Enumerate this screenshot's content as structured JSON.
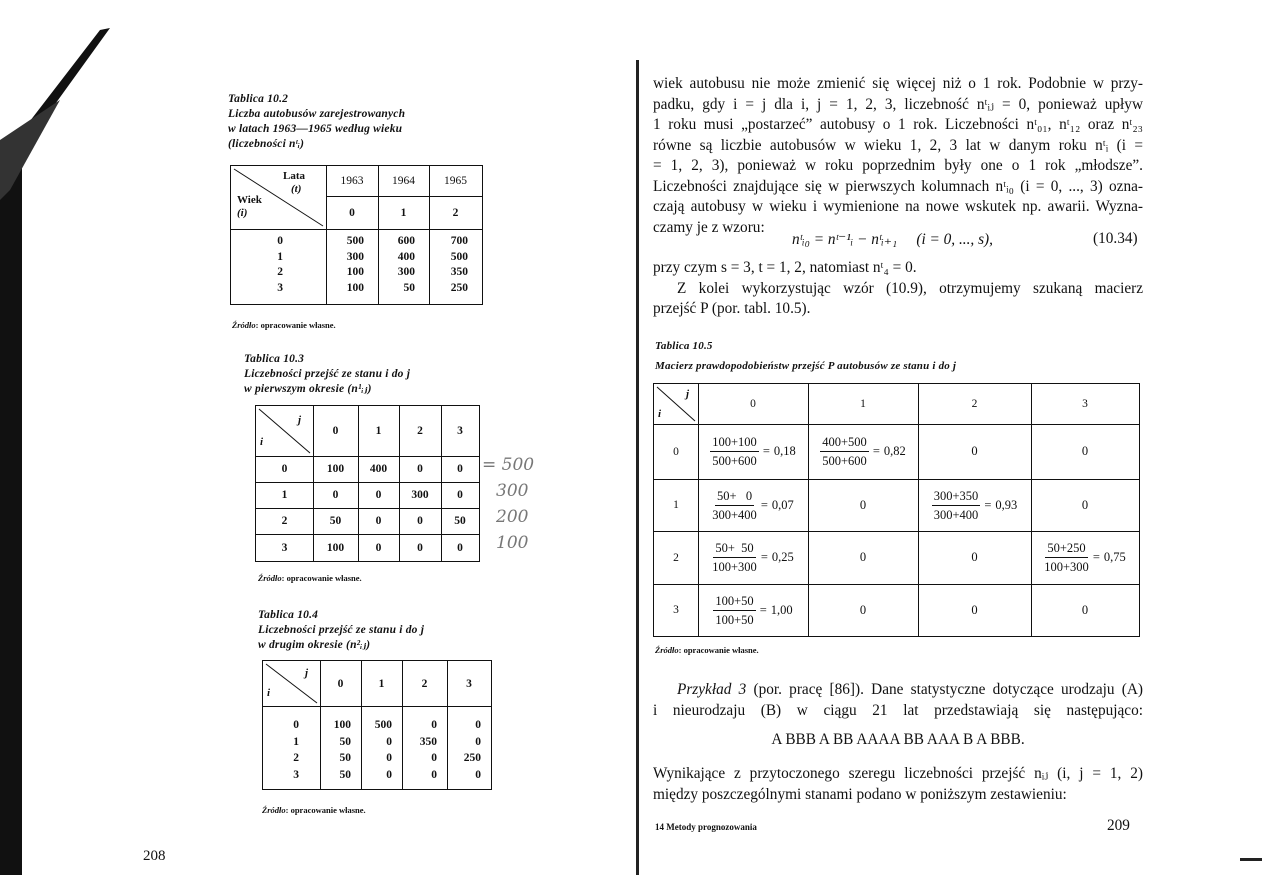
{
  "left_page": {
    "page_number": "208",
    "table_10_2": {
      "label": "Tablica 10.2",
      "caption_lines": [
        "Liczba autobusów zarejestrowanych",
        "w latach 1963—1965 według wieku",
        "(liczebności nᵗᵢ)"
      ],
      "corner_top": "Lata",
      "corner_top_sub": "(t)",
      "corner_bottom": "Wiek",
      "corner_bottom_sub": "(i)",
      "years": [
        "1963",
        "1964",
        "1965"
      ],
      "t_values": [
        "0",
        "1",
        "2"
      ],
      "row_labels": [
        "0",
        "1",
        "2",
        "3"
      ],
      "columns": [
        [
          "500",
          "300",
          "100",
          "100"
        ],
        [
          "600",
          "400",
          "300",
          "50"
        ],
        [
          "700",
          "500",
          "350",
          "250"
        ]
      ],
      "source_label": "Źródło",
      "source_text": ": opracowanie własne."
    },
    "table_10_3": {
      "label": "Tablica 10.3",
      "caption_lines": [
        "Liczebności przejść ze stanu i do j",
        "w pierwszym okresie (n¹ᵢⱼ)"
      ],
      "corner_top": "j",
      "corner_bottom": "i",
      "col_headers": [
        "0",
        "1",
        "2",
        "3"
      ],
      "row_labels": [
        "0",
        "1",
        "2",
        "3"
      ],
      "rows": [
        [
          "100",
          "400",
          "0",
          "0"
        ],
        [
          "0",
          "0",
          "300",
          "0"
        ],
        [
          "50",
          "0",
          "0",
          "50"
        ],
        [
          "100",
          "0",
          "0",
          "0"
        ]
      ],
      "source_label": "Źródło",
      "source_text": ": opracowanie własne.",
      "handwritten_notes": [
        "= 500",
        "300",
        "200",
        "100"
      ]
    },
    "table_10_4": {
      "label": "Tablica 10.4",
      "caption_lines": [
        "Liczebności przejść ze stanu i do j",
        "w drugim okresie (n²ᵢⱼ)"
      ],
      "corner_top": "j",
      "corner_bottom": "i",
      "col_headers": [
        "0",
        "1",
        "2",
        "3"
      ],
      "row_labels": [
        "0",
        "1",
        "2",
        "3"
      ],
      "columns": [
        [
          "100",
          "50",
          "50",
          "50"
        ],
        [
          "500",
          "0",
          "0",
          "0"
        ],
        [
          "0",
          "350",
          "0",
          "0"
        ],
        [
          "0",
          "0",
          "250",
          "0"
        ]
      ],
      "source_label": "Źródło",
      "source_text": ": opracowanie własne."
    }
  },
  "right_page": {
    "page_number": "209",
    "footer_note": "14  Metody prognozowania",
    "paragraph_lines": [
      "wiek autobusu nie może zmienić się więcej niż o 1 rok. Podobnie w przy-",
      "padku, gdy i = j dla i, j = 1, 2, 3, liczebność nᵗᵢⱼ = 0, ponieważ upływ",
      "1 roku musi „postarzeć” autobusy o 1 rok. Liczebności nᵗ₀₁, nᵗ₁₂ oraz nᵗ₂₃",
      "równe są liczbie autobusów w wieku 1, 2, 3 lat w danym roku nᵗᵢ (i =",
      "= 1, 2, 3), ponieważ w roku poprzednim były one o 1 rok „młodsze”.",
      "Liczebności znajdujące się w pierwszych kolumnach nᵗᵢ₀ (i = 0, ..., 3) ozna-",
      "czają autobusy w wieku i wymienione na nowe wskutek np. awarii. Wyzna-",
      "czamy je z wzoru:"
    ],
    "formula": "nᵗᵢ₀ = nᵗ⁻¹ᵢ − nᵗᵢ₊₁     (i = 0, ..., s),",
    "formula_number": "(10.34)",
    "after_formula_lines": [
      "przy czym s = 3, t = 1, 2, natomiast nᵗ₄ = 0.",
      "Z kolei wykorzystując wzór (10.9), otrzymujemy szukaną macierz",
      "przejść P (por. tabl. 10.5)."
    ],
    "table_10_5": {
      "label": "Tablica 10.5",
      "caption": "Macierz prawdopodobieństw przejść P autobusów ze stanu i do j",
      "corner_top": "j",
      "corner_bottom": "i",
      "col_headers": [
        "0",
        "1",
        "2",
        "3"
      ],
      "row_labels": [
        "0",
        "1",
        "2",
        "3"
      ],
      "rows": [
        [
          {
            "num": "100+100",
            "den": "500+600",
            "result": "0,18"
          },
          {
            "num": "400+500",
            "den": "500+600",
            "result": "0,82"
          },
          {
            "value": "0"
          },
          {
            "value": "0"
          }
        ],
        [
          {
            "num": "50+   0",
            "den": "300+400",
            "result": "0,07"
          },
          {
            "value": "0"
          },
          {
            "num": "300+350",
            "den": "300+400",
            "result": "0,93"
          },
          {
            "value": "0"
          }
        ],
        [
          {
            "num": "50+  50",
            "den": "100+300",
            "result": "0,25"
          },
          {
            "value": "0"
          },
          {
            "value": "0"
          },
          {
            "num": "50+250",
            "den": "100+300",
            "result": "0,75"
          }
        ],
        [
          {
            "num": "100+50",
            "den": "100+50",
            "result": "1,00"
          },
          {
            "value": "0"
          },
          {
            "value": "0"
          },
          {
            "value": "0"
          }
        ]
      ],
      "source_label": "Źródło",
      "source_text": ": opracowanie własne."
    },
    "example_lines": [
      {
        "lead": "Przykład 3",
        "text": " (por. pracę [86]). Dane statystyczne dotyczące urodzaju (A)"
      },
      {
        "lead": "",
        "text": "i nieurodzaju (B) w ciągu 21 lat przedstawiają się następująco:"
      }
    ],
    "sequence": "A BBB A BB AAAA BB AAA B A BBB.",
    "closing_lines": [
      "Wynikające z przytoczonego szeregu liczebności przejść nᵢⱼ (i, j = 1, 2)",
      "między poszczególnymi stanami podano w poniższym zestawieniu:"
    ]
  }
}
